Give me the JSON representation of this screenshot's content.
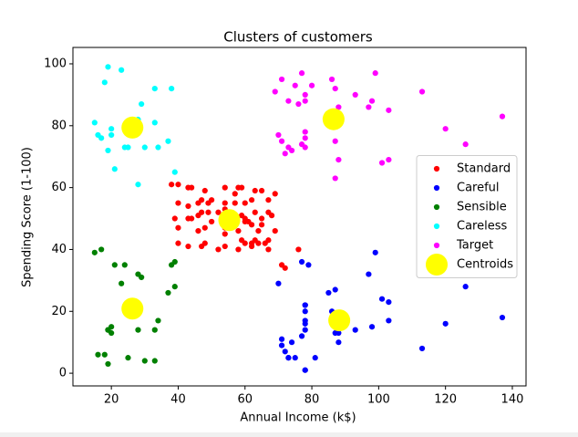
{
  "chart_data": {
    "type": "scatter",
    "title": "Clusters of customers",
    "x_label": "Annual Income (k$)",
    "y_label": "Spending Score (1-100)",
    "xlim": [
      8.5,
      144.1
    ],
    "ylim": [
      -4.1,
      105.3
    ],
    "xticks": [
      20,
      40,
      60,
      80,
      100,
      120,
      140
    ],
    "yticks": [
      0,
      20,
      40,
      60,
      80,
      100
    ],
    "grid": false,
    "legend": "center right",
    "series": [
      {
        "name": "Standard",
        "color": "#ff0000",
        "size": 20,
        "x": [
          40,
          40,
          40,
          40,
          43,
          43,
          43,
          43,
          44,
          46,
          46,
          47,
          47,
          48,
          48,
          48,
          49,
          49,
          50,
          50,
          54,
          54,
          54,
          54,
          54,
          54,
          57,
          58,
          59,
          59,
          60,
          60,
          60,
          60,
          61,
          62,
          62,
          62,
          63,
          63,
          63,
          64,
          65,
          65,
          67,
          67,
          67,
          67,
          69,
          71,
          72,
          76,
          39,
          38,
          44,
          47,
          55,
          57,
          58,
          59,
          62,
          64,
          65,
          66,
          68,
          69,
          58,
          46,
          52,
          52
        ],
        "values": [
          61,
          55,
          47,
          42,
          60,
          54,
          50,
          41,
          60,
          51,
          46,
          52,
          56,
          47,
          42,
          59,
          55,
          52,
          56,
          49,
          60,
          55,
          53,
          47,
          45,
          41,
          58,
          46,
          51,
          60,
          49,
          42,
          50,
          55,
          49,
          56,
          42,
          41,
          52,
          59,
          43,
          46,
          50,
          48,
          56,
          40,
          52,
          43,
          58,
          35,
          34,
          40,
          50,
          61,
          50,
          41,
          50,
          55,
          60,
          43,
          48,
          42,
          59,
          42,
          51,
          46,
          40,
          55,
          40,
          52
        ]
      },
      {
        "name": "Careful",
        "color": "#0000ff",
        "size": 20,
        "x": [
          70,
          71,
          71,
          72,
          73,
          73,
          74,
          75,
          77,
          77,
          78,
          78,
          78,
          78,
          78,
          78,
          79,
          81,
          85,
          86,
          87,
          87,
          87,
          88,
          88,
          93,
          97,
          98,
          99,
          101,
          103,
          103,
          113,
          120,
          126,
          137,
          78,
          78
        ],
        "values": [
          29,
          11,
          9,
          7,
          5,
          5,
          10,
          5,
          12,
          36,
          22,
          17,
          20,
          16,
          1,
          1,
          35,
          5,
          26,
          20,
          27,
          13,
          15,
          13,
          10,
          14,
          32,
          15,
          39,
          24,
          17,
          23,
          8,
          16,
          28,
          18,
          22,
          14
        ]
      },
      {
        "name": "Sensible",
        "color": "#008000",
        "size": 20,
        "x": [
          15,
          16,
          17,
          18,
          19,
          19,
          20,
          20,
          21,
          23,
          24,
          25,
          28,
          28,
          29,
          30,
          33,
          33,
          34,
          37,
          38,
          39,
          39,
          19
        ],
        "values": [
          39,
          6,
          40,
          6,
          3,
          14,
          15,
          13,
          35,
          29,
          35,
          5,
          14,
          32,
          31,
          4,
          4,
          14,
          17,
          26,
          35,
          36,
          28,
          14
        ]
      },
      {
        "name": "Careless",
        "color": "#00ffff",
        "size": 20,
        "x": [
          15,
          16,
          17,
          18,
          19,
          19,
          20,
          20,
          21,
          23,
          24,
          25,
          28,
          28,
          29,
          30,
          33,
          33,
          34,
          37,
          38,
          39
        ],
        "values": [
          81,
          77,
          76,
          94,
          72,
          99,
          77,
          79,
          66,
          98,
          73,
          73,
          82,
          61,
          87,
          73,
          92,
          81,
          73,
          75,
          92,
          65
        ]
      },
      {
        "name": "Target",
        "color": "#ff00ff",
        "size": 20,
        "x": [
          69,
          70,
          71,
          71,
          72,
          73,
          73,
          74,
          75,
          76,
          77,
          77,
          78,
          78,
          78,
          78,
          78,
          80,
          86,
          87,
          87,
          88,
          88,
          93,
          97,
          98,
          99,
          101,
          103,
          103,
          113,
          120,
          126,
          137,
          87
        ],
        "values": [
          91,
          77,
          95,
          75,
          71,
          88,
          73,
          72,
          93,
          87,
          97,
          74,
          90,
          88,
          76,
          78,
          73,
          93,
          95,
          63,
          92,
          86,
          69,
          90,
          86,
          88,
          97,
          68,
          85,
          69,
          91,
          79,
          74,
          83,
          75
        ]
      },
      {
        "name": "Centroids",
        "color": "#ffff00",
        "size": 300,
        "x": [
          26.3,
          55.3,
          86.5,
          88.2,
          26.3
        ],
        "values": [
          79.4,
          49.5,
          82.1,
          17.1,
          20.9
        ]
      }
    ]
  }
}
